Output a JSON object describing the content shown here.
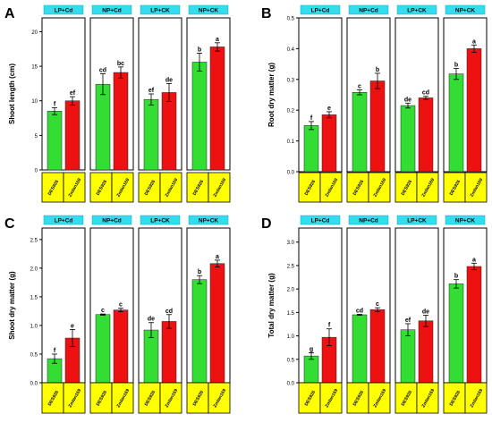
{
  "colors": {
    "bar_des": "#33dd33",
    "bar_zm": "#ee1111",
    "header_fill": "#33ddee",
    "label_fill": "#ffff00",
    "label_text": "#000000",
    "frame": "#000000",
    "label_text_shadow": "#bfbfbf"
  },
  "chart_data": [
    {
      "type": "bar",
      "panel_label": "A",
      "ylabel": "Shoot length (cm)",
      "ylim": [
        0,
        22
      ],
      "yticks": [
        "0",
        "5",
        "10",
        "15",
        "20"
      ],
      "groups": [
        "LP+Cd",
        "NP+Cd",
        "LP+CK",
        "NP+CK"
      ],
      "categories": [
        "DES926",
        "Zmlan169"
      ],
      "values": [
        [
          8.5,
          10.0
        ],
        [
          12.4,
          14.1
        ],
        [
          10.2,
          11.2
        ],
        [
          15.6,
          17.8
        ]
      ],
      "errors": [
        [
          0.5,
          0.6
        ],
        [
          1.5,
          0.8
        ],
        [
          0.8,
          1.3
        ],
        [
          1.3,
          0.6
        ]
      ],
      "letters": [
        [
          "f",
          "ef"
        ],
        [
          "cd",
          "bc"
        ],
        [
          "ef",
          "de"
        ],
        [
          "b",
          "a"
        ]
      ]
    },
    {
      "type": "bar",
      "panel_label": "B",
      "ylabel": "Root dry matter (g)",
      "ylim": [
        0,
        0.5
      ],
      "yticks": [
        "0.0",
        "0.1",
        "0.2",
        "0.3",
        "0.4",
        "0.5"
      ],
      "groups": [
        "LP+Cd",
        "NP+Cd",
        "LP+CK",
        "NP+CK"
      ],
      "categories": [
        "DES926",
        "Zmlan169"
      ],
      "values": [
        [
          0.15,
          0.185
        ],
        [
          0.258,
          0.295
        ],
        [
          0.215,
          0.24
        ],
        [
          0.318,
          0.4
        ]
      ],
      "errors": [
        [
          0.013,
          0.01
        ],
        [
          0.008,
          0.025
        ],
        [
          0.008,
          0.005
        ],
        [
          0.018,
          0.012
        ]
      ],
      "letters": [
        [
          "f",
          "e"
        ],
        [
          "c",
          "b"
        ],
        [
          "de",
          "cd"
        ],
        [
          "b",
          "a"
        ]
      ]
    },
    {
      "type": "bar",
      "panel_label": "C",
      "ylabel": "Shoot dry matter (g)",
      "ylim": [
        0,
        2.7
      ],
      "yticks": [
        "0.0",
        "0.5",
        "1.0",
        "1.5",
        "2.0",
        "2.5"
      ],
      "groups": [
        "LP+Cd",
        "NP+Cd",
        "LP+CK",
        "NP+CK"
      ],
      "categories": [
        "DES926",
        "Zmlan169"
      ],
      "values": [
        [
          0.42,
          0.78
        ],
        [
          1.19,
          1.27
        ],
        [
          0.92,
          1.07
        ],
        [
          1.8,
          2.08
        ]
      ],
      "errors": [
        [
          0.08,
          0.15
        ],
        [
          0.01,
          0.03
        ],
        [
          0.13,
          0.12
        ],
        [
          0.07,
          0.06
        ]
      ],
      "letters": [
        [
          "f",
          "e"
        ],
        [
          "c",
          "c"
        ],
        [
          "de",
          "cd"
        ],
        [
          "b",
          "a"
        ]
      ]
    },
    {
      "type": "bar",
      "panel_label": "D",
      "ylabel": "Total dry matter (g)",
      "ylim": [
        0,
        3.3
      ],
      "yticks": [
        "0.0",
        "0.5",
        "1.0",
        "1.5",
        "2.0",
        "2.5",
        "3.0"
      ],
      "groups": [
        "LP+Cd",
        "NP+Cd",
        "LP+CK",
        "NP+CK"
      ],
      "categories": [
        "DES926",
        "Zmlan169"
      ],
      "values": [
        [
          0.57,
          0.97
        ],
        [
          1.45,
          1.56
        ],
        [
          1.13,
          1.32
        ],
        [
          2.11,
          2.48
        ]
      ],
      "errors": [
        [
          0.07,
          0.18
        ],
        [
          0.01,
          0.04
        ],
        [
          0.13,
          0.12
        ],
        [
          0.09,
          0.07
        ]
      ],
      "letters": [
        [
          "g",
          "f"
        ],
        [
          "cd",
          "c"
        ],
        [
          "ef",
          "de"
        ],
        [
          "b",
          "a"
        ]
      ]
    }
  ]
}
